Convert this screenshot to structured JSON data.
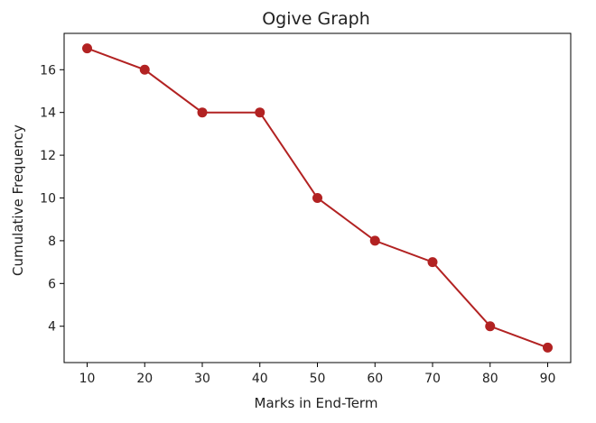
{
  "chart_data": {
    "type": "line",
    "title": "Ogive Graph",
    "xlabel": "Marks in End-Term",
    "ylabel": "Cumulative Frequency",
    "x": [
      10,
      20,
      30,
      40,
      50,
      60,
      70,
      80,
      90
    ],
    "series": [
      {
        "values": [
          17,
          16,
          14,
          14,
          10,
          8,
          7,
          4,
          3
        ],
        "color": "#b22222",
        "marker": "circle"
      }
    ],
    "xticks": [
      10,
      20,
      30,
      40,
      50,
      60,
      70,
      80,
      90
    ],
    "yticks": [
      4,
      6,
      8,
      10,
      12,
      14,
      16
    ],
    "xlim": [
      6,
      94
    ],
    "ylim": [
      2.3,
      17.7
    ],
    "grid": false,
    "legend": "none"
  }
}
